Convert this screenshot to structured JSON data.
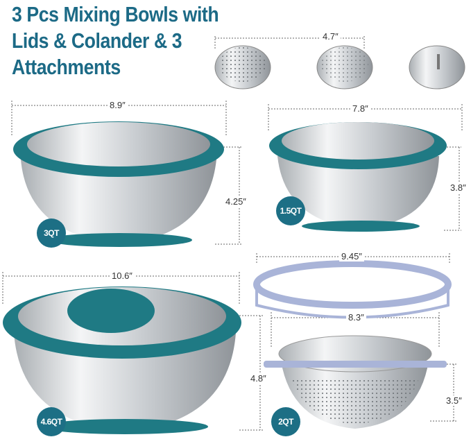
{
  "title": "3 Pcs Mixing Bowls with Lids & Colander & 3 Attachments",
  "dimensions": {
    "attachment_width": "4.7″",
    "bowl_3qt_width": "8.9″",
    "bowl_3qt_height": "4.25″",
    "bowl_15qt_width": "7.8″",
    "bowl_15qt_height": "3.8″",
    "bowl_46qt_width": "10.6″",
    "bowl_46qt_height": "4.8″",
    "ring_width": "9.45″",
    "colander_width": "8.3″",
    "colander_height": "3.5″"
  },
  "badges": {
    "bowl_3qt": "3QT",
    "bowl_15qt": "1.5QT",
    "bowl_46qt": "4.6QT",
    "colander": "2QT"
  },
  "colors": {
    "title": "#1c6a86",
    "lid_teal": "#1f7a84",
    "badge": "#1d6f85",
    "ring_lavender": "#a9b4d8",
    "steel": "#d8dcdf"
  }
}
